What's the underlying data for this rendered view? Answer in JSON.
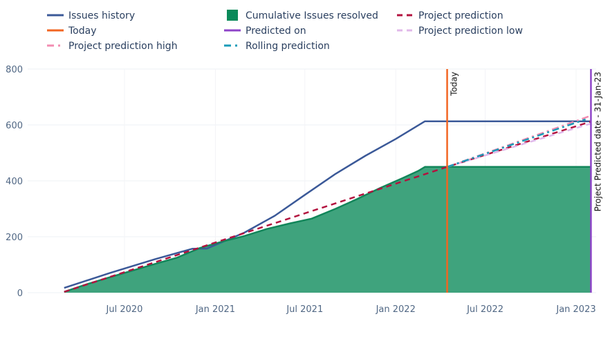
{
  "chart_data": {
    "type": "area",
    "title": "",
    "xlabel": "",
    "ylabel": "",
    "xlim": [
      "2020-03-01",
      "2023-02-15"
    ],
    "ylim": [
      0,
      800
    ],
    "grid": true,
    "legend_position": "top",
    "x_ticks": [
      {
        "date": "2020-07-01",
        "label": "Jul 2020"
      },
      {
        "date": "2021-01-01",
        "label": "Jan 2021"
      },
      {
        "date": "2021-07-01",
        "label": "Jul 2021"
      },
      {
        "date": "2022-01-01",
        "label": "Jan 2022"
      },
      {
        "date": "2022-07-01",
        "label": "Jul 2022"
      },
      {
        "date": "2023-01-01",
        "label": "Jan 2023"
      }
    ],
    "y_ticks": [
      {
        "value": 0,
        "label": "0"
      },
      {
        "value": 200,
        "label": "200"
      },
      {
        "value": 400,
        "label": "400"
      },
      {
        "value": 600,
        "label": "600"
      },
      {
        "value": 800,
        "label": "800"
      }
    ],
    "legend": [
      {
        "key": "issues_history",
        "label": "Issues history",
        "color": "#3b5998",
        "style": "solid"
      },
      {
        "key": "cumulative_resolved",
        "label": "Cumulative Issues resolved",
        "color": "#0a8a5a",
        "style": "box"
      },
      {
        "key": "project_prediction",
        "label": "Project prediction",
        "color": "#b3123f",
        "style": "dash"
      },
      {
        "key": "today",
        "label": "Today",
        "color": "#f26522",
        "style": "solid"
      },
      {
        "key": "predicted_on",
        "label": "Predicted on",
        "color": "#8e44c8",
        "style": "solid"
      },
      {
        "key": "project_prediction_low",
        "label": "Project prediction low",
        "color": "#e0b8ea",
        "style": "dash"
      },
      {
        "key": "project_prediction_high",
        "label": "Project prediction high",
        "color": "#f28cb1",
        "style": "dashdot"
      },
      {
        "key": "rolling_prediction",
        "label": "Rolling prediction",
        "color": "#1a9bb8",
        "style": "dashdot"
      }
    ],
    "series": [
      {
        "name": "Issues history",
        "key": "issues_history",
        "x": [
          "2020-03-01",
          "2020-06-01",
          "2020-09-01",
          "2020-11-15",
          "2020-12-15",
          "2021-03-01",
          "2021-05-01",
          "2021-07-01",
          "2021-09-01",
          "2021-11-01",
          "2022-01-01",
          "2022-03-01",
          "2022-04-15",
          "2022-07-01",
          "2022-10-01",
          "2023-01-31"
        ],
        "y": [
          17,
          70,
          120,
          157,
          158,
          215,
          275,
          350,
          425,
          490,
          550,
          613,
          613,
          613,
          613,
          613
        ]
      },
      {
        "name": "Cumulative Issues resolved",
        "key": "cumulative_resolved",
        "x": [
          "2020-03-01",
          "2020-04-15",
          "2020-06-01",
          "2020-07-15",
          "2020-09-01",
          "2020-10-15",
          "2020-12-01",
          "2021-01-15",
          "2021-03-01",
          "2021-04-15",
          "2021-06-01",
          "2021-07-15",
          "2021-09-01",
          "2021-10-15",
          "2021-12-01",
          "2022-01-15",
          "2022-02-15",
          "2022-03-01",
          "2022-04-15",
          "2022-07-01",
          "2022-10-01",
          "2023-01-31"
        ],
        "y": [
          3,
          30,
          55,
          78,
          103,
          125,
          160,
          183,
          203,
          228,
          248,
          265,
          300,
          335,
          375,
          410,
          435,
          450,
          450,
          450,
          450,
          450
        ]
      },
      {
        "name": "Project prediction",
        "key": "project_prediction",
        "x": [
          "2020-03-01",
          "2022-04-15",
          "2023-01-31"
        ],
        "y": [
          3,
          450,
          612
        ]
      },
      {
        "name": "Project prediction low",
        "key": "project_prediction_low",
        "x": [
          "2022-04-15",
          "2023-01-31"
        ],
        "y": [
          450,
          605
        ]
      },
      {
        "name": "Project prediction high",
        "key": "project_prediction_high",
        "x": [
          "2022-04-15",
          "2023-01-31"
        ],
        "y": [
          450,
          633
        ]
      },
      {
        "name": "Rolling prediction",
        "key": "rolling_prediction",
        "x": [
          "2022-04-15",
          "2023-01-20"
        ],
        "y": [
          450,
          620
        ]
      }
    ],
    "vertical_lines": [
      {
        "key": "today",
        "date": "2022-04-15",
        "label": "Today",
        "color": "#f26522"
      },
      {
        "key": "predicted_on",
        "date": "2023-01-31",
        "label": "Project Predicted date - 31-Jan-23",
        "color": "#8e44c8"
      }
    ]
  }
}
